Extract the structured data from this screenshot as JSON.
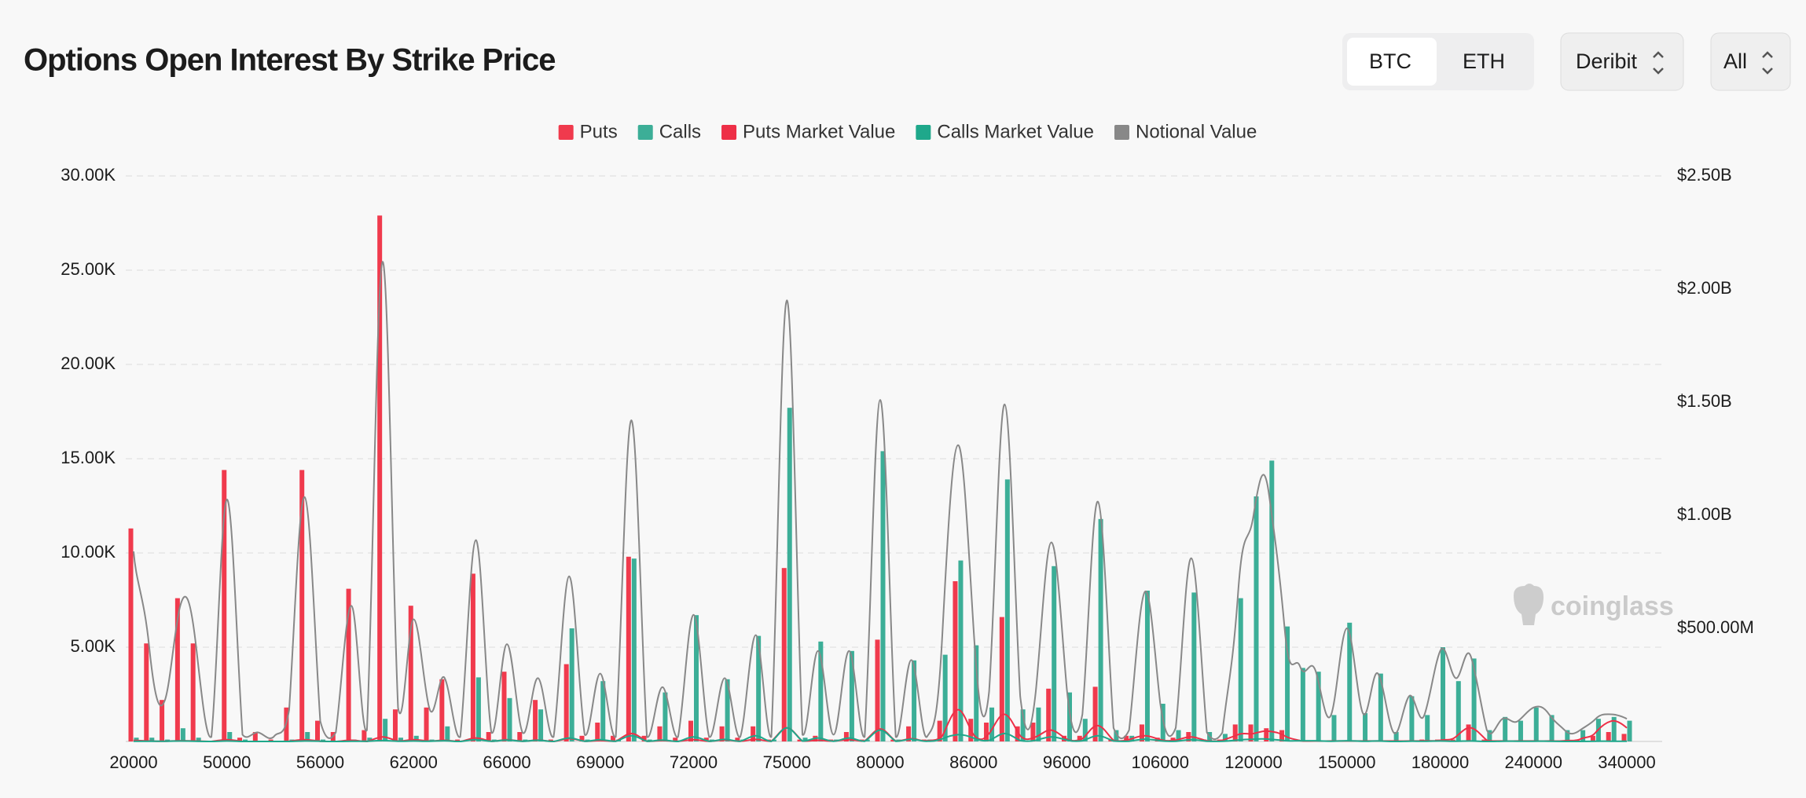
{
  "chart_data": {
    "type": "bar",
    "title": "Options Open Interest By Strike Price",
    "controls": {
      "coins": [
        "BTC",
        "ETH"
      ],
      "selected_coin": "BTC",
      "exchange": "Deribit",
      "expiry": "All"
    },
    "watermark": "coinglass",
    "categories": [
      "20000",
      null,
      null,
      null,
      null,
      null,
      "50000",
      null,
      null,
      null,
      null,
      null,
      "56000",
      null,
      null,
      null,
      null,
      null,
      "62000",
      null,
      null,
      null,
      null,
      null,
      "66000",
      null,
      null,
      null,
      null,
      null,
      "69000",
      null,
      null,
      null,
      null,
      null,
      "72000",
      null,
      null,
      null,
      null,
      null,
      "75000",
      null,
      null,
      null,
      null,
      null,
      "80000",
      null,
      null,
      null,
      null,
      null,
      "86000",
      null,
      null,
      null,
      null,
      null,
      "96000",
      null,
      null,
      null,
      null,
      null,
      "106000",
      null,
      null,
      null,
      null,
      null,
      "120000",
      null,
      null,
      null,
      null,
      null,
      "150000",
      null,
      null,
      null,
      null,
      null,
      "180000",
      null,
      null,
      null,
      null,
      null,
      "240000",
      null,
      null,
      null,
      null,
      null,
      "340000"
    ],
    "ylim": [
      0,
      30000
    ],
    "yticks": [
      {
        "value": 5000,
        "label": "5.00K"
      },
      {
        "value": 10000,
        "label": "10.00K"
      },
      {
        "value": 15000,
        "label": "15.00K"
      },
      {
        "value": 20000,
        "label": "20.00K"
      },
      {
        "value": 25000,
        "label": "25.00K"
      },
      {
        "value": 30000,
        "label": "30.00K"
      }
    ],
    "y2lim": [
      0,
      2500000000
    ],
    "y2ticks": [
      {
        "value": 500000000,
        "label": "$500.00M"
      },
      {
        "value": 1000000000,
        "label": "$1.00B"
      },
      {
        "value": 1500000000,
        "label": "$1.50B"
      },
      {
        "value": 2000000000,
        "label": "$2.00B"
      },
      {
        "value": 2500000000,
        "label": "$2.50B"
      }
    ],
    "grid": true,
    "legend": "top",
    "series": [
      {
        "name": "Puts",
        "type": "bar",
        "color": "#f03a4d",
        "values": [
          11300,
          5200,
          2200,
          7600,
          5200,
          0,
          14400,
          200,
          500,
          100,
          1800,
          14400,
          1100,
          500,
          8100,
          600,
          27900,
          1700,
          7200,
          1800,
          3300,
          100,
          8900,
          500,
          3700,
          500,
          2200,
          100,
          4100,
          300,
          1000,
          300,
          9800,
          300,
          800,
          200,
          1100,
          200,
          800,
          200,
          800,
          100,
          9200,
          100,
          300,
          100,
          500,
          100,
          5400,
          100,
          800,
          100,
          1100,
          8500,
          1200,
          1000,
          6600,
          800,
          1000,
          2800,
          300,
          300,
          2900,
          100,
          300,
          900,
          200,
          200,
          500,
          100,
          100,
          900,
          900,
          700,
          600,
          100,
          0,
          0,
          0,
          0,
          0,
          0,
          0,
          100,
          100,
          100,
          900,
          100,
          0,
          0,
          0,
          0,
          0,
          100,
          300,
          500,
          400
        ]
      },
      {
        "name": "Calls",
        "type": "bar",
        "color": "#3cae97",
        "values": [
          200,
          200,
          100,
          700,
          200,
          0,
          500,
          100,
          0,
          0,
          100,
          500,
          100,
          0,
          100,
          200,
          1200,
          200,
          300,
          100,
          800,
          0,
          3400,
          100,
          2300,
          100,
          1700,
          0,
          6000,
          100,
          3200,
          100,
          9700,
          100,
          2600,
          0,
          6700,
          100,
          3300,
          100,
          5600,
          100,
          17700,
          200,
          5300,
          100,
          4800,
          100,
          15400,
          100,
          4300,
          100,
          4600,
          9600,
          5100,
          1800,
          13900,
          1700,
          1800,
          9300,
          2600,
          1200,
          11800,
          600,
          300,
          8000,
          2000,
          600,
          7900,
          500,
          400,
          7600,
          13000,
          14900,
          6100,
          3900,
          3700,
          1400,
          6300,
          1500,
          3600,
          500,
          2400,
          1400,
          5000,
          3200,
          4400,
          600,
          1300,
          1100,
          1800,
          1400,
          600,
          600,
          1200,
          1300,
          1100
        ]
      },
      {
        "name": "Puts Market Value",
        "type": "line",
        "axis": "y2",
        "color": "#ee2f47",
        "values": [
          5000000.0,
          2000000.0,
          1000000.0,
          3000000.0,
          2000000.0,
          0,
          8000000.0,
          0,
          0,
          0,
          1000000.0,
          8000000.0,
          1000000.0,
          0,
          5000000.0,
          0,
          20000000.0,
          2000000.0,
          8000000.0,
          2000000.0,
          5000000.0,
          0,
          15000000.0,
          1000000.0,
          8000000.0,
          1000000.0,
          6000000.0,
          0,
          12000000.0,
          1000000.0,
          4000000.0,
          1000000.0,
          35000000.0,
          1000000.0,
          4000000.0,
          1000000.0,
          8000000.0,
          1000000.0,
          7000000.0,
          1000000.0,
          9000000.0,
          1000000.0,
          60000000.0,
          2000000.0,
          5000000.0,
          2000000.0,
          8000000.0,
          2000000.0,
          55000000.0,
          2000000.0,
          12000000.0,
          3000000.0,
          25000000.0,
          140000000.0,
          30000000.0,
          35000000.0,
          120000000.0,
          25000000.0,
          20000000.0,
          50000000.0,
          10000000.0,
          12000000.0,
          70000000.0,
          5000000.0,
          8000000.0,
          25000000.0,
          8000000.0,
          6000000.0,
          20000000.0,
          3000000.0,
          5000000.0,
          30000000.0,
          35000000.0,
          45000000.0,
          25000000.0,
          3000000.0,
          2000000.0,
          2000000.0,
          2000000.0,
          2000000.0,
          2000000.0,
          2000000.0,
          2000000.0,
          3000000.0,
          5000000.0,
          20000000.0,
          60000000.0,
          5000000.0,
          2000000.0,
          2000000.0,
          2000000.0,
          2000000.0,
          3000000.0,
          10000000.0,
          40000000.0,
          90000000.0,
          60000000.0
        ]
      },
      {
        "name": "Calls Market Value",
        "type": "line",
        "axis": "y2",
        "color": "#1fa88b",
        "values": [
          1000000.0,
          1000000.0,
          1000000.0,
          2000000.0,
          1000000.0,
          0,
          2000000.0,
          0,
          0,
          0,
          0,
          2000000.0,
          1000000.0,
          0,
          1000000.0,
          1000000.0,
          4000000.0,
          1000000.0,
          2000000.0,
          1000000.0,
          3000000.0,
          0,
          8000000.0,
          1000000.0,
          6000000.0,
          1000000.0,
          5000000.0,
          0,
          15000000.0,
          1000000.0,
          8000000.0,
          1000000.0,
          25000000.0,
          1000000.0,
          6000000.0,
          0,
          20000000.0,
          1000000.0,
          9000000.0,
          1000000.0,
          25000000.0,
          1000000.0,
          60000000.0,
          2000000.0,
          15000000.0,
          1000000.0,
          15000000.0,
          1000000.0,
          50000000.0,
          1000000.0,
          10000000.0,
          1000000.0,
          12000000.0,
          30000000.0,
          15000000.0,
          5000000.0,
          35000000.0,
          4000000.0,
          5000000.0,
          20000000.0,
          6000000.0,
          3000000.0,
          25000000.0,
          2000000.0,
          1000000.0,
          10000000.0,
          3000000.0,
          1000000.0,
          8000000.0,
          1000000.0,
          1000000.0,
          6000000.0,
          10000000.0,
          10000000.0,
          4000000.0,
          3000000.0,
          3000000.0,
          1000000.0,
          3000000.0,
          1000000.0,
          2000000.0,
          0,
          1000000.0,
          1000000.0,
          2000000.0,
          1000000.0,
          2000000.0,
          0,
          1000000.0,
          1000000.0,
          1000000.0,
          1000000.0,
          0,
          0,
          1000000.0,
          1000000.0,
          1000000.0
        ]
      },
      {
        "name": "Notional Value",
        "type": "line",
        "axis": "y2",
        "color": "#888888",
        "values": [
          840000000.0,
          420000000.0,
          180000000.0,
          600000000.0,
          430000000.0,
          20000000.0,
          1070000000.0,
          30000000.0,
          40000000.0,
          20000000.0,
          140000000.0,
          1080000000.0,
          90000000.0,
          40000000.0,
          600000000.0,
          50000000.0,
          2120000000.0,
          150000000.0,
          540000000.0,
          150000000.0,
          280000000.0,
          20000000.0,
          890000000.0,
          40000000.0,
          430000000.0,
          40000000.0,
          280000000.0,
          20000000.0,
          730000000.0,
          30000000.0,
          300000000.0,
          20000000.0,
          1420000000.0,
          20000000.0,
          240000000.0,
          20000000.0,
          560000000.0,
          20000000.0,
          280000000.0,
          20000000.0,
          470000000.0,
          20000000.0,
          1950000000.0,
          30000000.0,
          400000000.0,
          30000000.0,
          400000000.0,
          20000000.0,
          1510000000.0,
          20000000.0,
          360000000.0,
          20000000.0,
          480000000.0,
          1310000000.0,
          500000000.0,
          220000000.0,
          1490000000.0,
          200000000.0,
          220000000.0,
          880000000.0,
          230000000.0,
          120000000.0,
          1060000000.0,
          60000000.0,
          50000000.0,
          660000000.0,
          170000000.0,
          60000000.0,
          810000000.0,
          40000000.0,
          40000000.0,
          650000000.0,
          1000000000.0,
          1090000000.0,
          500000000.0,
          330000000.0,
          310000000.0,
          120000000.0,
          500000000.0,
          130000000.0,
          300000000.0,
          40000000.0,
          200000000.0,
          120000000.0,
          400000000.0,
          280000000.0,
          370000000.0,
          50000000.0,
          100000000.0,
          90000000.0,
          150000000.0,
          120000000.0,
          50000000.0,
          50000000.0,
          100000000.0,
          120000000.0,
          100000000.0
        ]
      }
    ]
  }
}
